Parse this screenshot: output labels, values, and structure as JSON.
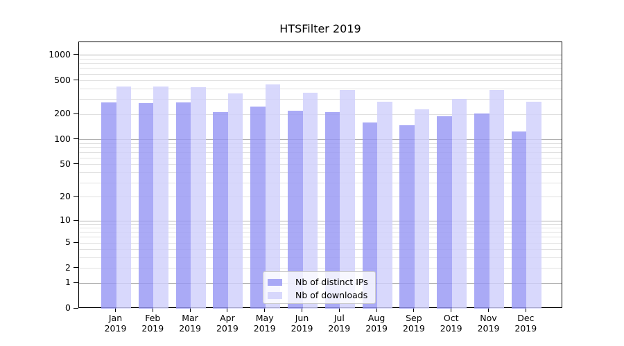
{
  "chart_data": {
    "type": "bar",
    "title": "HTSFilter 2019",
    "categories": [
      "Jan",
      "Feb",
      "Mar",
      "Apr",
      "May",
      "Jun",
      "Jul",
      "Aug",
      "Sep",
      "Oct",
      "Nov",
      "Dec"
    ],
    "category_year": "2019",
    "series": [
      {
        "name": "Nb of distinct IPs",
        "color": "#9797f4",
        "values": [
          278,
          271,
          277,
          210,
          249,
          219,
          211,
          160,
          147,
          190,
          203,
          125
        ]
      },
      {
        "name": "Nb of downloads",
        "color": "#d0d0fb",
        "values": [
          426,
          428,
          420,
          352,
          453,
          362,
          387,
          282,
          228,
          305,
          390,
          283
        ]
      }
    ],
    "bar_opacity": 0.82,
    "scale": "log1p",
    "ylim": [
      0,
      1469
    ],
    "yticks": [
      0,
      1,
      2,
      5,
      10,
      20,
      50,
      100,
      200,
      500,
      1000
    ],
    "grid": {
      "major_values": [
        1,
        10,
        100,
        1000
      ],
      "labeled_minor_values": [
        2,
        5,
        20,
        50,
        200,
        500
      ],
      "minor_values": [
        3,
        4,
        6,
        7,
        8,
        9,
        30,
        40,
        60,
        70,
        80,
        90,
        300,
        400,
        600,
        700,
        800,
        900
      ],
      "major_color": "#aeaeae",
      "minor_color": "#e0e0e0"
    },
    "axis_color": "#000000",
    "legend": {
      "location": "lower-center",
      "frame_color": "#cccccc"
    }
  }
}
